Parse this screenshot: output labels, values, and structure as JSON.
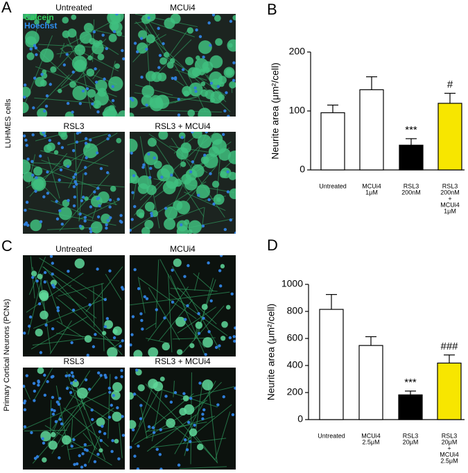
{
  "panel_labels": [
    "A",
    "B",
    "C",
    "D"
  ],
  "image_panels": [
    {
      "side_label": "LUHMES cells",
      "stain_labels": [
        "Calcein",
        "Hoechst"
      ],
      "tiles": [
        "Untreated",
        "MCUi4",
        "RSL3",
        "RSL3 + MCUi4"
      ]
    },
    {
      "side_label": "Primary Cortical Neurons (PCNs)",
      "tiles": [
        "Untreated",
        "MCUi4",
        "RSL3",
        "RSL3 + MCUi4"
      ]
    }
  ],
  "chart_data": [
    {
      "type": "bar",
      "y_label": "Neurite area (μm²/cell)",
      "categories": [
        [
          "Untreated"
        ],
        [
          "MCUi4",
          "1μM"
        ],
        [
          "RSL3",
          "200nM"
        ],
        [
          "RSL3",
          "200nM",
          "+",
          "MCUi4",
          "1μM"
        ]
      ],
      "values": [
        97,
        136,
        42,
        113
      ],
      "errors": [
        13,
        22,
        11,
        17
      ],
      "colors": [
        "#ffffff",
        "#ffffff",
        "#000000",
        "#f7e600"
      ],
      "significance": [
        null,
        null,
        "***",
        "#"
      ],
      "ylim": [
        0,
        200
      ],
      "yticks": [
        0,
        100,
        200
      ]
    },
    {
      "type": "bar",
      "y_label": "Neurite area (μm²/cell)",
      "categories": [
        [
          "Untreated"
        ],
        [
          "MCUi4",
          "2.5μM"
        ],
        [
          "RSL3",
          "20μM"
        ],
        [
          "RSL3",
          "20μM",
          "+",
          "MCUi4",
          "2.5μM"
        ]
      ],
      "values": [
        815,
        548,
        183,
        418
      ],
      "errors": [
        110,
        65,
        28,
        60
      ],
      "colors": [
        "#ffffff",
        "#ffffff",
        "#000000",
        "#f7e600"
      ],
      "significance": [
        null,
        null,
        "***",
        "###"
      ],
      "ylim": [
        0,
        1000
      ],
      "yticks": [
        0,
        200,
        400,
        600,
        800,
        1000
      ]
    }
  ]
}
